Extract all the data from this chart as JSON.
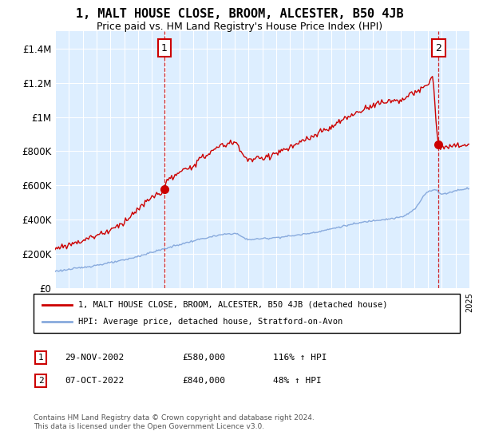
{
  "title": "1, MALT HOUSE CLOSE, BROOM, ALCESTER, B50 4JB",
  "subtitle": "Price paid vs. HM Land Registry's House Price Index (HPI)",
  "title_fontsize": 11,
  "subtitle_fontsize": 9,
  "hpi_color": "#88aadd",
  "price_color": "#cc0000",
  "plot_bg": "#ddeeff",
  "ylim": [
    0,
    1500000
  ],
  "yticks": [
    0,
    200000,
    400000,
    600000,
    800000,
    1000000,
    1200000,
    1400000
  ],
  "ytick_labels": [
    "£0",
    "£200K",
    "£400K",
    "£600K",
    "£800K",
    "£1M",
    "£1.2M",
    "£1.4M"
  ],
  "xmin": 1995,
  "xmax": 2025,
  "sale1_x": 2002.91,
  "sale1_y": 580000,
  "sale1_label": "1",
  "sale1_date": "29-NOV-2002",
  "sale1_price": "£580,000",
  "sale1_pct": "116% ↑ HPI",
  "sale2_x": 2022.77,
  "sale2_y": 840000,
  "sale2_label": "2",
  "sale2_date": "07-OCT-2022",
  "sale2_price": "£840,000",
  "sale2_pct": "48% ↑ HPI",
  "legend_line1": "1, MALT HOUSE CLOSE, BROOM, ALCESTER, B50 4JB (detached house)",
  "legend_line2": "HPI: Average price, detached house, Stratford-on-Avon",
  "footer1": "Contains HM Land Registry data © Crown copyright and database right 2024.",
  "footer2": "This data is licensed under the Open Government Licence v3.0.",
  "hpi_knots_x": [
    1995,
    1996,
    1998,
    2000,
    2002,
    2004,
    2006,
    2008,
    2009,
    2010,
    2012,
    2014,
    2016,
    2018,
    2020,
    2021,
    2022,
    2022.5,
    2023,
    2024,
    2025
  ],
  "hpi_knots_y": [
    100000,
    110000,
    135000,
    165000,
    210000,
    255000,
    295000,
    320000,
    285000,
    290000,
    305000,
    330000,
    365000,
    395000,
    415000,
    460000,
    565000,
    575000,
    550000,
    570000,
    585000
  ],
  "red_knots_x": [
    1995,
    1996,
    1997,
    1998,
    1999,
    2000,
    2001,
    2002,
    2002.91,
    2003,
    2004,
    2005,
    2006,
    2007,
    2008,
    2009,
    2010,
    2011,
    2012,
    2013,
    2014,
    2015,
    2016,
    2017,
    2018,
    2019,
    2020,
    2021,
    2022,
    2022.3,
    2022.77,
    2023,
    2024,
    2025
  ],
  "red_knots_y": [
    230000,
    255000,
    280000,
    310000,
    340000,
    390000,
    460000,
    530000,
    580000,
    610000,
    670000,
    720000,
    780000,
    830000,
    850000,
    750000,
    760000,
    790000,
    820000,
    860000,
    900000,
    940000,
    990000,
    1030000,
    1070000,
    1090000,
    1100000,
    1140000,
    1190000,
    1230000,
    840000,
    820000,
    830000,
    840000
  ]
}
